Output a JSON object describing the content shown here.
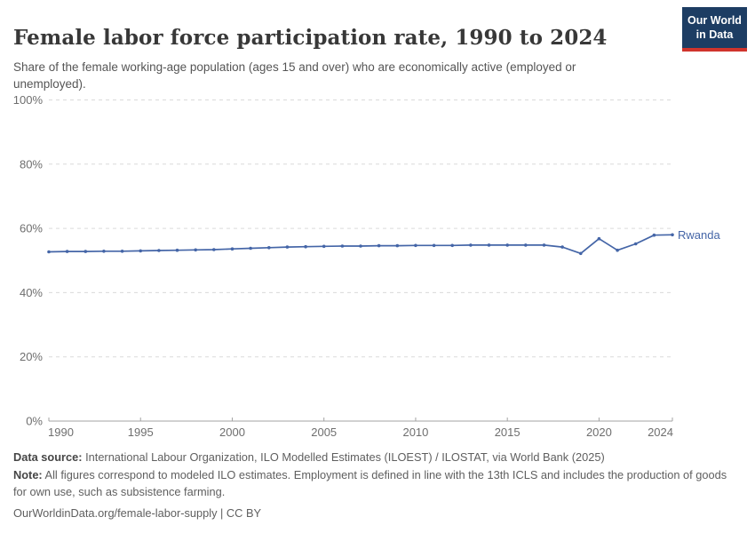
{
  "header": {
    "title": "Female labor force participation rate, 1990 to 2024",
    "subtitle": "Share of the female working-age population (ages 15 and over) who are economically active (employed or unemployed).",
    "logo": {
      "line1": "Our World",
      "line2": "in Data"
    }
  },
  "chart_data": {
    "type": "line",
    "title": "Female labor force participation rate, 1990 to 2024",
    "xlabel": "",
    "ylabel": "",
    "unit": "%",
    "ylim": [
      0,
      100
    ],
    "yticks": [
      0,
      20,
      40,
      60,
      80,
      100
    ],
    "ytick_labels": [
      "0%",
      "20%",
      "40%",
      "60%",
      "80%",
      "100%"
    ],
    "xticks": [
      1990,
      1995,
      2000,
      2005,
      2010,
      2015,
      2020,
      2024
    ],
    "grid": "horizontal-dashed",
    "legend_position": "end-of-line",
    "x": [
      1990,
      1991,
      1992,
      1993,
      1994,
      1995,
      1996,
      1997,
      1998,
      1999,
      2000,
      2001,
      2002,
      2003,
      2004,
      2005,
      2006,
      2007,
      2008,
      2009,
      2010,
      2011,
      2012,
      2013,
      2014,
      2015,
      2016,
      2017,
      2018,
      2019,
      2020,
      2021,
      2022,
      2023,
      2024
    ],
    "series": [
      {
        "name": "Rwanda",
        "color": "#4465a7",
        "values": [
          52.7,
          52.8,
          52.8,
          52.9,
          52.9,
          53.0,
          53.1,
          53.2,
          53.3,
          53.4,
          53.6,
          53.8,
          54.0,
          54.2,
          54.3,
          54.4,
          54.5,
          54.5,
          54.6,
          54.6,
          54.7,
          54.7,
          54.7,
          54.8,
          54.8,
          54.8,
          54.8,
          54.8,
          54.2,
          52.2,
          56.8,
          53.2,
          55.2,
          57.9,
          58.0
        ]
      }
    ]
  },
  "footer": {
    "datasource_label": "Data source:",
    "datasource_text": " International Labour Organization, ILO Modelled Estimates (ILOEST) / ILOSTAT, via World Bank (2025)",
    "note_label": "Note:",
    "note_text": " All figures correspond to modeled ILO estimates. Employment is defined in line with the 13th ICLS and includes the production of goods for own use, such as subsistence farming.",
    "link": "OurWorldinData.org/female-labor-supply | CC BY"
  },
  "colors": {
    "line": "#4465a7",
    "logo_navy": "#1d3d63",
    "logo_red": "#d0342c",
    "grid": "#dadada",
    "axis": "#a3a3a3",
    "tick_label": "#6e6e6e",
    "title_text": "#383838",
    "subtitle_text": "#555555",
    "footer_text": "#5f5f5f"
  }
}
